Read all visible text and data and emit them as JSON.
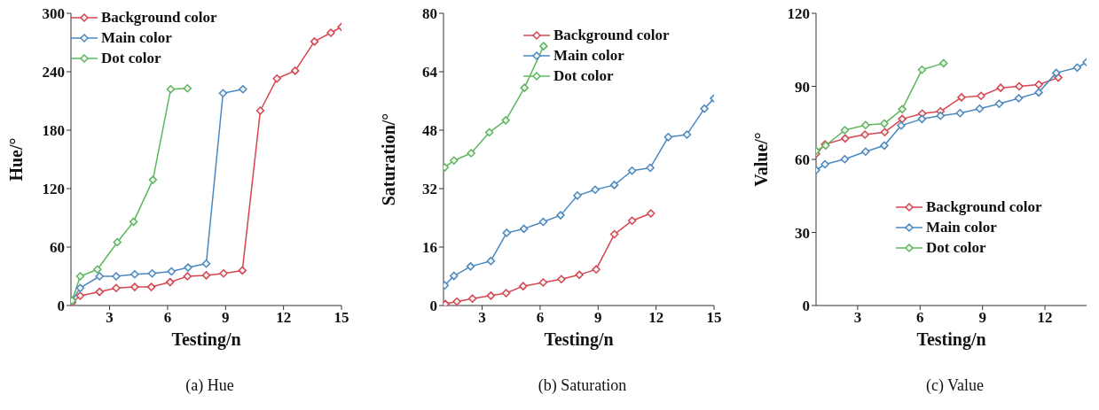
{
  "chart_data": [
    {
      "type": "line",
      "ylabel": "Hue/°",
      "xlabel": "Testing/n",
      "annotations": [
        "(a) Hue"
      ],
      "xlim": [
        1,
        15
      ],
      "xticks": [
        3,
        6,
        9,
        12,
        15
      ],
      "ylim": [
        0,
        300
      ],
      "yticks": [
        0,
        60,
        120,
        180,
        240,
        300
      ],
      "legend": "top left",
      "marker": "diamond",
      "series": [
        {
          "name": "Background color",
          "color": "#d64550",
          "x": [
            1.06,
            1.48,
            2.48,
            3.34,
            4.3,
            5.16,
            6.13,
            7.03,
            8.0,
            8.9,
            9.87,
            10.8,
            11.66,
            12.6,
            13.6,
            14.45,
            15
          ],
          "values": [
            3,
            10,
            14,
            18,
            19,
            19,
            24,
            30,
            31,
            33,
            36,
            200,
            233,
            241,
            271,
            280,
            286
          ]
        },
        {
          "name": "Main color",
          "color": "#4a88c0",
          "x": [
            1.06,
            1.48,
            2.48,
            3.34,
            4.3,
            5.2,
            6.2,
            7.06,
            8.0,
            8.87,
            9.9
          ],
          "values": [
            5,
            18,
            30,
            30,
            32,
            33,
            35,
            39,
            43,
            218,
            222
          ]
        },
        {
          "name": "Dot color",
          "color": "#5cb85c",
          "x": [
            1.06,
            1.48,
            2.37,
            3.4,
            4.24,
            5.24,
            6.16,
            7.03
          ],
          "values": [
            5,
            30,
            37,
            65,
            86,
            129,
            222,
            223
          ]
        }
      ]
    },
    {
      "type": "line",
      "ylabel": "Saturation/°",
      "xlabel": "Testing/n",
      "annotations": [
        "(b) Saturation"
      ],
      "xlim": [
        1,
        15
      ],
      "xticks": [
        3,
        6,
        9,
        12,
        15
      ],
      "ylim": [
        0,
        80
      ],
      "yticks": [
        0,
        16,
        32,
        48,
        64,
        80
      ],
      "legend": "top right",
      "marker": "diamond",
      "series": [
        {
          "name": "Background color",
          "color": "#d64550",
          "x": [
            1.1,
            1.69,
            2.5,
            3.45,
            4.24,
            5.12,
            6.16,
            7.1,
            8.03,
            8.9,
            9.84,
            10.76,
            11.73
          ],
          "values": [
            0.4,
            1.1,
            1.9,
            2.7,
            3.4,
            5.3,
            6.3,
            7.2,
            8.4,
            9.9,
            19.5,
            23.2,
            25.2
          ]
        },
        {
          "name": "Main color",
          "color": "#4a88c0",
          "x": [
            1.06,
            1.54,
            2.4,
            3.45,
            4.27,
            5.16,
            6.16,
            7.06,
            7.93,
            8.85,
            9.84,
            10.76,
            11.7,
            12.63,
            13.6,
            14.5,
            15
          ],
          "values": [
            5.5,
            8.1,
            10.7,
            12.2,
            19.9,
            21,
            22.9,
            24.7,
            30.1,
            31.7,
            33,
            36.9,
            37.7,
            46.1,
            46.8,
            53.9,
            56.7
          ]
        },
        {
          "name": "Dot color",
          "color": "#5cb85c",
          "x": [
            1.06,
            1.54,
            2.43,
            3.37,
            4.22,
            5.19,
            6.18
          ],
          "values": [
            37.8,
            39.7,
            41.7,
            47.4,
            50.7,
            59.6,
            71
          ]
        }
      ]
    },
    {
      "type": "line",
      "ylabel": "Value/°",
      "xlabel": "Testing/n",
      "annotations": [
        "(c) Value"
      ],
      "xlim": [
        1,
        14
      ],
      "xticks": [
        3,
        6,
        9,
        12
      ],
      "ylim": [
        0,
        120
      ],
      "yticks": [
        0,
        30,
        60,
        90,
        120
      ],
      "legend": "right",
      "marker": "diamond",
      "series": [
        {
          "name": "Background color",
          "color": "#d64550",
          "x": [
            1.0,
            1.43,
            2.4,
            3.35,
            4.3,
            5.14,
            6.1,
            6.98,
            7.99,
            8.93,
            9.87,
            10.76,
            11.7,
            12.64
          ],
          "values": [
            62.3,
            66.2,
            68.6,
            70.2,
            71.2,
            76.6,
            78.8,
            79.7,
            85.5,
            86.1,
            89.4,
            90,
            90.7,
            93.6
          ]
        },
        {
          "name": "Main color",
          "color": "#4a88c0",
          "x": [
            1.0,
            1.43,
            2.38,
            3.38,
            4.28,
            5.09,
            6.09,
            6.98,
            7.92,
            8.86,
            9.8,
            10.74,
            11.7,
            12.54,
            13.55,
            14
          ],
          "values": [
            55.6,
            58,
            60.1,
            63.2,
            65.7,
            73.9,
            76.6,
            77.9,
            79,
            80.8,
            82.8,
            85.1,
            87.5,
            95.5,
            97.7,
            99.9
          ]
        },
        {
          "name": "Dot color",
          "color": "#5cb85c",
          "x": [
            1.0,
            1.46,
            2.38,
            3.38,
            4.28,
            5.14,
            6.09,
            7.13
          ],
          "values": [
            63.5,
            65.7,
            72,
            74.1,
            74.7,
            80.6,
            96.8,
            99.5
          ]
        }
      ]
    }
  ]
}
